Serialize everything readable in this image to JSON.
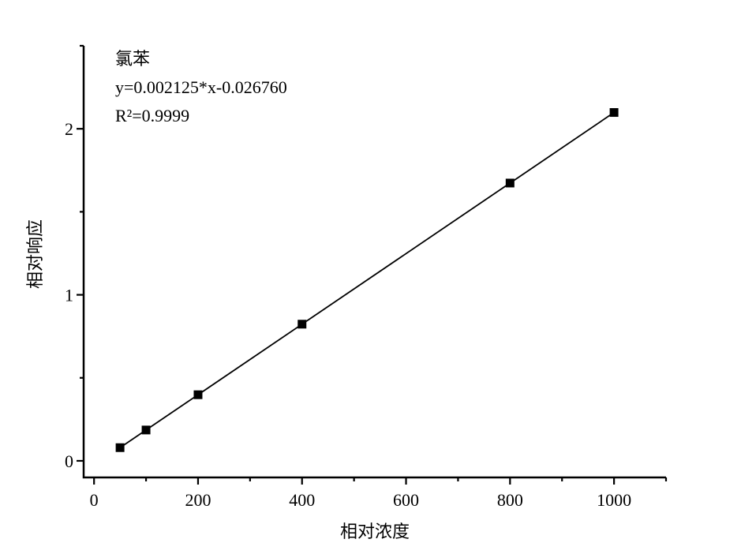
{
  "figure": {
    "background": "#ffffff"
  },
  "chart_data": {
    "type": "line",
    "title": "氯苯",
    "equation": "y=0.002125*x-0.026760",
    "r_squared": "R²=0.9999",
    "xlabel": "相对浓度",
    "ylabel": "相对响应",
    "x": [
      50,
      100,
      200,
      400,
      800,
      1000
    ],
    "y": [
      0.0795,
      0.1858,
      0.3982,
      0.8232,
      1.6732,
      2.0982
    ],
    "xlim": [
      -20,
      1100
    ],
    "ylim": [
      -0.1,
      2.5
    ],
    "x_major_ticks": [
      0,
      200,
      400,
      600,
      800,
      1000
    ],
    "x_minor_ticks": [
      100,
      300,
      500,
      700,
      900,
      1100
    ],
    "y_major_ticks": [
      0,
      1,
      2
    ],
    "y_minor_ticks": [
      0.5,
      1.5,
      2.5
    ],
    "marker": "filled-square",
    "grid": false,
    "legend": "none",
    "colors": {
      "line": "#000000",
      "marker": "#000000",
      "axis": "#000000",
      "text": "#000000",
      "background": "#ffffff"
    }
  }
}
